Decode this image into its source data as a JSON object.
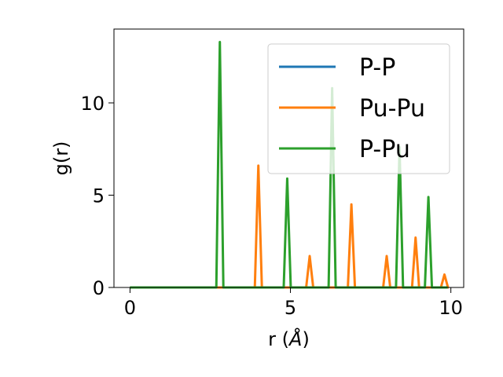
{
  "chart_data": {
    "type": "line",
    "xlabel_main": "r (",
    "xlabel_unit": "Å",
    "xlabel_close": ")",
    "ylabel": "g(r)",
    "xlim": [
      -0.5,
      10.4
    ],
    "ylim": [
      0,
      14
    ],
    "x_ticks": [
      0,
      5,
      10
    ],
    "x_tick_labels": [
      "0",
      "5",
      "10"
    ],
    "y_ticks": [
      0,
      5,
      10
    ],
    "y_tick_labels": [
      "0",
      "5",
      "10"
    ],
    "grid": false,
    "legend_position": "top-right",
    "series": [
      {
        "name": "P-P",
        "color": "#1f77b4",
        "peaks": []
      },
      {
        "name": "Pu-Pu",
        "color": "#ff7f0e",
        "peaks": [
          [
            4.0,
            6.6
          ],
          [
            5.6,
            1.7
          ],
          [
            6.9,
            4.5
          ],
          [
            8.0,
            1.7
          ],
          [
            8.9,
            2.7
          ],
          [
            9.8,
            0.7
          ]
        ]
      },
      {
        "name": "P-Pu",
        "color": "#2ca02c",
        "peaks": [
          [
            2.8,
            13.3
          ],
          [
            4.9,
            5.9
          ],
          [
            6.3,
            10.8
          ],
          [
            8.4,
            7.6
          ],
          [
            9.3,
            4.9
          ]
        ]
      }
    ],
    "x_range": [
      0,
      9.9
    ]
  }
}
